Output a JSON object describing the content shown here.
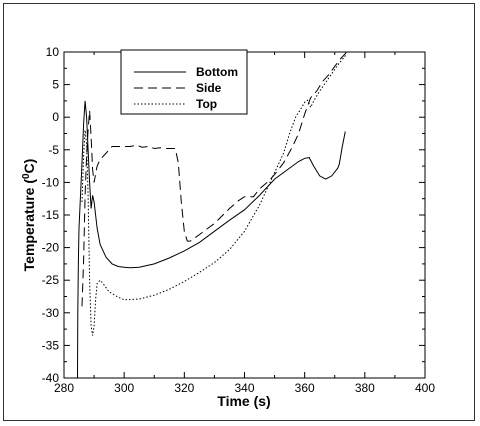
{
  "chart_data": {
    "type": "line",
    "xlabel": "Time (s)",
    "ylabel_main": "Temperature (",
    "ylabel_sup": "0",
    "ylabel_tail": "C)",
    "xlim": [
      280,
      400
    ],
    "ylim": [
      -40,
      10
    ],
    "xticks": [
      280,
      300,
      320,
      340,
      360,
      380,
      400
    ],
    "yticks": [
      -40,
      -35,
      -30,
      -25,
      -20,
      -15,
      -10,
      -5,
      0,
      5,
      10
    ],
    "grid": false,
    "legend_position": "top-left",
    "series": [
      {
        "name": "Bottom",
        "style": "solid",
        "points": [
          [
            284.5,
            -40
          ],
          [
            284.6,
            -30
          ],
          [
            284.8,
            -22
          ],
          [
            285.0,
            -17
          ],
          [
            285.5,
            -12
          ],
          [
            286.0,
            -7
          ],
          [
            286.5,
            -1
          ],
          [
            287.0,
            2.5
          ],
          [
            287.5,
            0
          ],
          [
            288.0,
            -5
          ],
          [
            288.5,
            -10
          ],
          [
            289.0,
            -14
          ],
          [
            289.5,
            -12
          ],
          [
            290.0,
            -13
          ],
          [
            291.0,
            -17
          ],
          [
            292.0,
            -19.5
          ],
          [
            294.0,
            -21.5
          ],
          [
            296.0,
            -22.5
          ],
          [
            298.0,
            -22.9
          ],
          [
            300.0,
            -23.0
          ],
          [
            302.0,
            -23.1
          ],
          [
            305.0,
            -23.0
          ],
          [
            310.0,
            -22.5
          ],
          [
            315.0,
            -21.6
          ],
          [
            320.0,
            -20.5
          ],
          [
            325.0,
            -19.2
          ],
          [
            330.0,
            -17.5
          ],
          [
            335.0,
            -15.8
          ],
          [
            340.0,
            -14.2
          ],
          [
            345.0,
            -12.0
          ],
          [
            350.0,
            -9.5
          ],
          [
            355.0,
            -7.8
          ],
          [
            358.0,
            -6.8
          ],
          [
            360.0,
            -6.3
          ],
          [
            361.5,
            -6.2
          ],
          [
            363.0,
            -7.5
          ],
          [
            365.0,
            -9.0
          ],
          [
            367.0,
            -9.5
          ],
          [
            369.0,
            -9.0
          ],
          [
            371.0,
            -7.8
          ],
          [
            371.5,
            -7.2
          ],
          [
            372.5,
            -4.5
          ],
          [
            373.5,
            -2.2
          ]
        ]
      },
      {
        "name": "Side",
        "style": "dashed",
        "points": [
          [
            286.0,
            -29
          ],
          [
            286.5,
            -22
          ],
          [
            287.0,
            -12
          ],
          [
            287.5,
            -6
          ],
          [
            288.0,
            -2
          ],
          [
            288.5,
            1
          ],
          [
            289.0,
            -3
          ],
          [
            289.5,
            -8
          ],
          [
            290.0,
            -10
          ],
          [
            291.0,
            -7.5
          ],
          [
            292.0,
            -6.5
          ],
          [
            294.0,
            -5.5
          ],
          [
            296.0,
            -4.5
          ],
          [
            298.0,
            -4.5
          ],
          [
            300.0,
            -4.5
          ],
          [
            302.0,
            -4.5
          ],
          [
            304.0,
            -4.3
          ],
          [
            306.0,
            -4.6
          ],
          [
            308.0,
            -4.5
          ],
          [
            310.0,
            -4.8
          ],
          [
            312.0,
            -4.7
          ],
          [
            314.0,
            -4.8
          ],
          [
            317.0,
            -4.8
          ],
          [
            318.0,
            -7
          ],
          [
            319.0,
            -13
          ],
          [
            320.0,
            -17.5
          ],
          [
            321.0,
            -19
          ],
          [
            322.0,
            -19
          ],
          [
            325.0,
            -18
          ],
          [
            330.0,
            -16.3
          ],
          [
            335.0,
            -14
          ],
          [
            338.0,
            -12.8
          ],
          [
            340.0,
            -12.2
          ],
          [
            343.0,
            -12.2
          ],
          [
            345.0,
            -11
          ],
          [
            348.0,
            -9.8
          ],
          [
            350.0,
            -8.8
          ],
          [
            353.0,
            -7
          ],
          [
            356.0,
            -4.5
          ],
          [
            358.0,
            -2.5
          ],
          [
            360.0,
            0.5
          ],
          [
            362.0,
            3
          ],
          [
            364.0,
            4
          ],
          [
            366.0,
            5.5
          ],
          [
            368.0,
            6.5
          ],
          [
            370.0,
            7.8
          ],
          [
            372.0,
            9
          ],
          [
            374.0,
            10
          ]
        ]
      },
      {
        "name": "Top",
        "style": "dotted",
        "points": [
          [
            286.0,
            -13
          ],
          [
            286.5,
            -6
          ],
          [
            287.0,
            -2
          ],
          [
            287.5,
            -4
          ],
          [
            288.0,
            -12
          ],
          [
            288.5,
            -25
          ],
          [
            289.0,
            -32
          ],
          [
            289.5,
            -33.5
          ],
          [
            290.0,
            -32
          ],
          [
            290.5,
            -28
          ],
          [
            291.0,
            -25.5
          ],
          [
            292.0,
            -25
          ],
          [
            293.0,
            -25.5
          ],
          [
            295.0,
            -26.8
          ],
          [
            298.0,
            -27.6
          ],
          [
            300.0,
            -28
          ],
          [
            305.0,
            -27.9
          ],
          [
            310.0,
            -27.3
          ],
          [
            315.0,
            -26.4
          ],
          [
            320.0,
            -25.2
          ],
          [
            325.0,
            -23.8
          ],
          [
            330.0,
            -22.3
          ],
          [
            335.0,
            -20.3
          ],
          [
            340.0,
            -17.5
          ],
          [
            345.0,
            -13.5
          ],
          [
            350.0,
            -8.5
          ],
          [
            353.0,
            -5.5
          ],
          [
            355.0,
            -2.5
          ],
          [
            357.0,
            0
          ],
          [
            359.0,
            1.5
          ],
          [
            360.0,
            2.3
          ],
          [
            361.0,
            2.6
          ],
          [
            362.0,
            1.5
          ],
          [
            363.0,
            2.5
          ],
          [
            365.0,
            4
          ],
          [
            368.0,
            6
          ],
          [
            371.0,
            8
          ],
          [
            374.0,
            9.7
          ]
        ]
      }
    ]
  }
}
